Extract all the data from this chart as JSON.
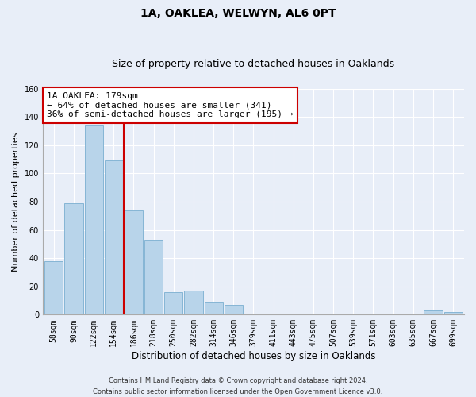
{
  "title": "1A, OAKLEA, WELWYN, AL6 0PT",
  "subtitle": "Size of property relative to detached houses in Oaklands",
  "xlabel": "Distribution of detached houses by size in Oaklands",
  "ylabel": "Number of detached properties",
  "bar_labels": [
    "58sqm",
    "90sqm",
    "122sqm",
    "154sqm",
    "186sqm",
    "218sqm",
    "250sqm",
    "282sqm",
    "314sqm",
    "346sqm",
    "379sqm",
    "411sqm",
    "443sqm",
    "475sqm",
    "507sqm",
    "539sqm",
    "571sqm",
    "603sqm",
    "635sqm",
    "667sqm",
    "699sqm"
  ],
  "bar_values": [
    38,
    79,
    134,
    109,
    74,
    53,
    16,
    17,
    9,
    7,
    0,
    1,
    0,
    0,
    0,
    0,
    0,
    1,
    0,
    3,
    2
  ],
  "bar_color": "#b8d4ea",
  "bar_edge_color": "#7aaed0",
  "vline_x_idx": 4,
  "vline_color": "#cc0000",
  "ylim": [
    0,
    160
  ],
  "yticks": [
    0,
    20,
    40,
    60,
    80,
    100,
    120,
    140,
    160
  ],
  "annotation_title": "1A OAKLEA: 179sqm",
  "annotation_line1": "← 64% of detached houses are smaller (341)",
  "annotation_line2": "36% of semi-detached houses are larger (195) →",
  "annotation_box_color": "#ffffff",
  "annotation_box_edge": "#cc0000",
  "footer1": "Contains HM Land Registry data © Crown copyright and database right 2024.",
  "footer2": "Contains public sector information licensed under the Open Government Licence v3.0.",
  "bg_color": "#e8eef8",
  "plot_bg_color": "#e8eef8",
  "grid_color": "#ffffff",
  "title_fontsize": 10,
  "subtitle_fontsize": 9,
  "tick_fontsize": 7,
  "ylabel_fontsize": 8,
  "xlabel_fontsize": 8.5,
  "annotation_fontsize": 8,
  "footer_fontsize": 6
}
